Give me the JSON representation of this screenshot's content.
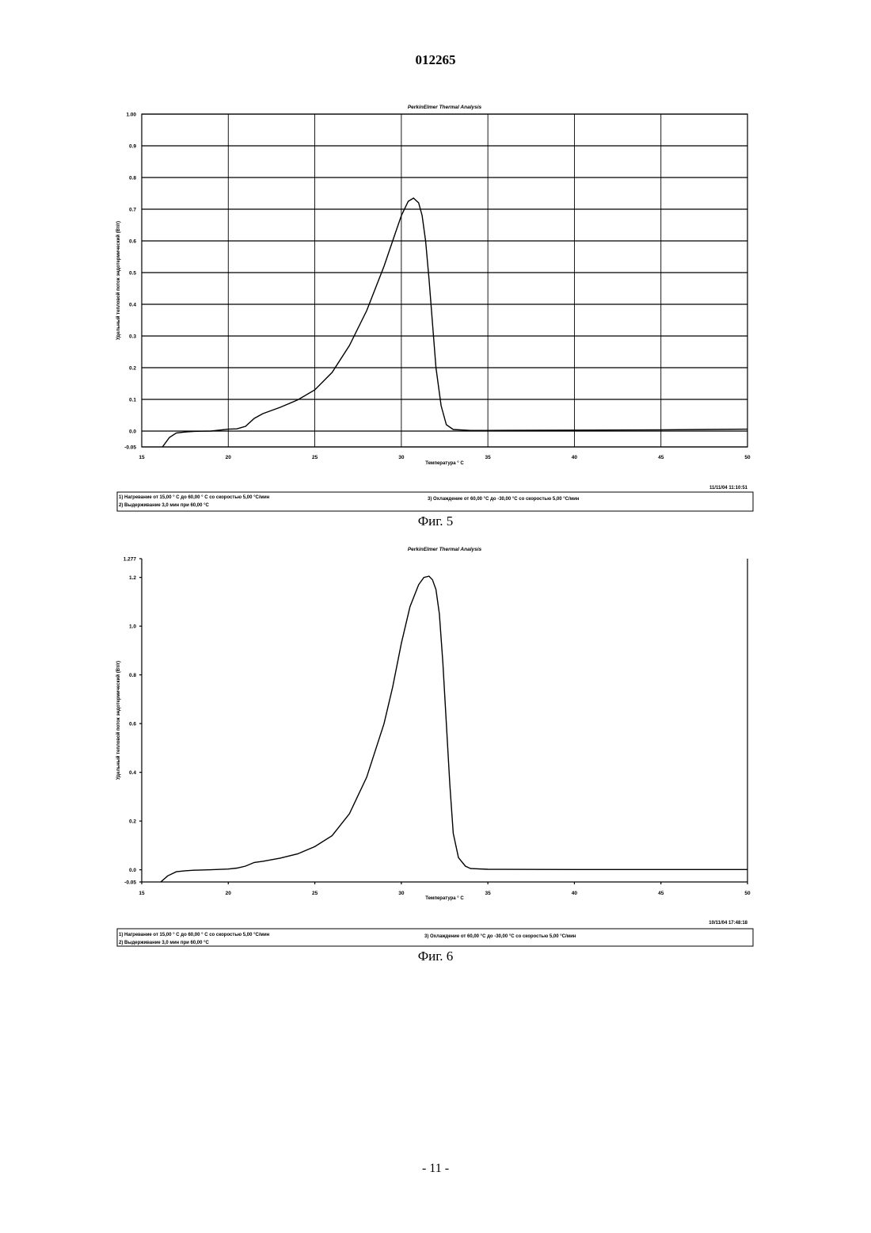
{
  "page": {
    "doc_number": "012265",
    "page_number": "- 11 -"
  },
  "chart_data": [
    {
      "type": "line",
      "figure_caption": "Фиг. 5",
      "title": "PerkinElmer Thermal Analysis",
      "xlabel": "Температура ° C",
      "ylabel": "Удельный тепловой поток эндотермический (Вт/г)",
      "xlim": [
        15,
        50
      ],
      "ylim": [
        -0.05,
        1.0
      ],
      "xticks": [
        15,
        20,
        25,
        30,
        35,
        40,
        45,
        50
      ],
      "xtick_labels": [
        "15",
        "20",
        "25",
        "30",
        "35",
        "40",
        "45",
        "50"
      ],
      "yticks": [
        -0.05,
        0,
        0.1,
        0.2,
        0.3,
        0.4,
        0.5,
        0.6,
        0.7,
        0.8,
        0.9,
        1.0
      ],
      "ytick_labels": [
        "-0.05",
        "0.0",
        "0.1",
        "0.2",
        "0.3",
        "0.4",
        "0.5",
        "0.6",
        "0.7",
        "0.8",
        "0.9",
        "1.00"
      ],
      "grid": "horizontal and vertical",
      "timestamp": "11/11/04 11:10:51",
      "footer": {
        "line1": "1) Нагревание от 15,00 ° C до 60,00 ° C со скоростью 5,00 °С/мин",
        "line2": "2) Выдерживание 3,0 мин при 60,00 °С",
        "line3": "3) Охлаждение от 60,00 °С до -30,00 °С со скоростью 5,00 °С/мин"
      },
      "series": [
        {
          "x": [
            16.2,
            16.6,
            17.0,
            17.5,
            18.0,
            19.0,
            20.0,
            20.5,
            21.0,
            21.5,
            22.0,
            23.0,
            24.0,
            25.0,
            26.0,
            27.0,
            28.0,
            29.0,
            29.5,
            30.0,
            30.4,
            30.7,
            31.0,
            31.2,
            31.4,
            31.6,
            31.8,
            32.0,
            32.3,
            32.6,
            33.0,
            34.0,
            35.0,
            40.0,
            45.0,
            50.0
          ],
          "y": [
            -0.05,
            -0.02,
            -0.006,
            -0.003,
            -0.001,
            0.0,
            0.006,
            0.007,
            0.015,
            0.04,
            0.055,
            0.075,
            0.098,
            0.13,
            0.185,
            0.27,
            0.38,
            0.52,
            0.6,
            0.68,
            0.725,
            0.735,
            0.72,
            0.68,
            0.6,
            0.48,
            0.34,
            0.2,
            0.08,
            0.02,
            0.005,
            0.002,
            0.002,
            0.003,
            0.004,
            0.006
          ]
        }
      ]
    },
    {
      "type": "line",
      "figure_caption": "Фиг. 6",
      "title": "PerkinElmer Thermal Analysis",
      "xlabel": "Температура ° C",
      "ylabel": "Удельный тепловой поток эндотермический (Вт/г)",
      "xlim": [
        15,
        50
      ],
      "ylim": [
        -0.05,
        1.277
      ],
      "xticks": [
        15,
        20,
        25,
        30,
        35,
        40,
        45,
        50
      ],
      "xtick_labels": [
        "15",
        "20",
        "25",
        "30",
        "35",
        "40",
        "45",
        "50"
      ],
      "yticks": [
        -0.05,
        0,
        0.2,
        0.4,
        0.6,
        0.8,
        1.0,
        1.2,
        1.277
      ],
      "ytick_labels": [
        "-0.05",
        "0.0",
        "0.2",
        "0.4",
        "0.6",
        "0.8",
        "1.0",
        "1.2",
        "1.277"
      ],
      "grid": "none",
      "timestamp": "10/11/04 17:48:18",
      "footer": {
        "line1": "1) Нагревание от 15,00 ° C до 60,00 ° C со скоростью 5,00 °С/мин",
        "line2": "2) Выдерживание 3,0 мин при 60,00 °С",
        "line3": "3) Охлаждение от 60,00 °С до -30,00 °С со скоростью 5,00 °С/мин"
      },
      "series": [
        {
          "x": [
            16.1,
            16.5,
            17.0,
            17.5,
            18.0,
            19.0,
            20.0,
            20.5,
            21.0,
            21.5,
            22.0,
            23.0,
            24.0,
            25.0,
            26.0,
            27.0,
            28.0,
            29.0,
            29.5,
            30.0,
            30.5,
            31.0,
            31.3,
            31.6,
            31.8,
            32.0,
            32.2,
            32.4,
            32.6,
            32.8,
            33.0,
            33.3,
            33.7,
            34.0,
            35.0,
            40.0,
            45.0,
            50.0
          ],
          "y": [
            -0.05,
            -0.025,
            -0.008,
            -0.004,
            -0.002,
            0.0,
            0.003,
            0.007,
            0.015,
            0.03,
            0.035,
            0.048,
            0.065,
            0.095,
            0.14,
            0.23,
            0.38,
            0.6,
            0.75,
            0.93,
            1.08,
            1.17,
            1.2,
            1.205,
            1.19,
            1.15,
            1.05,
            0.85,
            0.6,
            0.35,
            0.15,
            0.05,
            0.015,
            0.005,
            0.002,
            0.001,
            0.001,
            0.001
          ]
        }
      ]
    }
  ]
}
